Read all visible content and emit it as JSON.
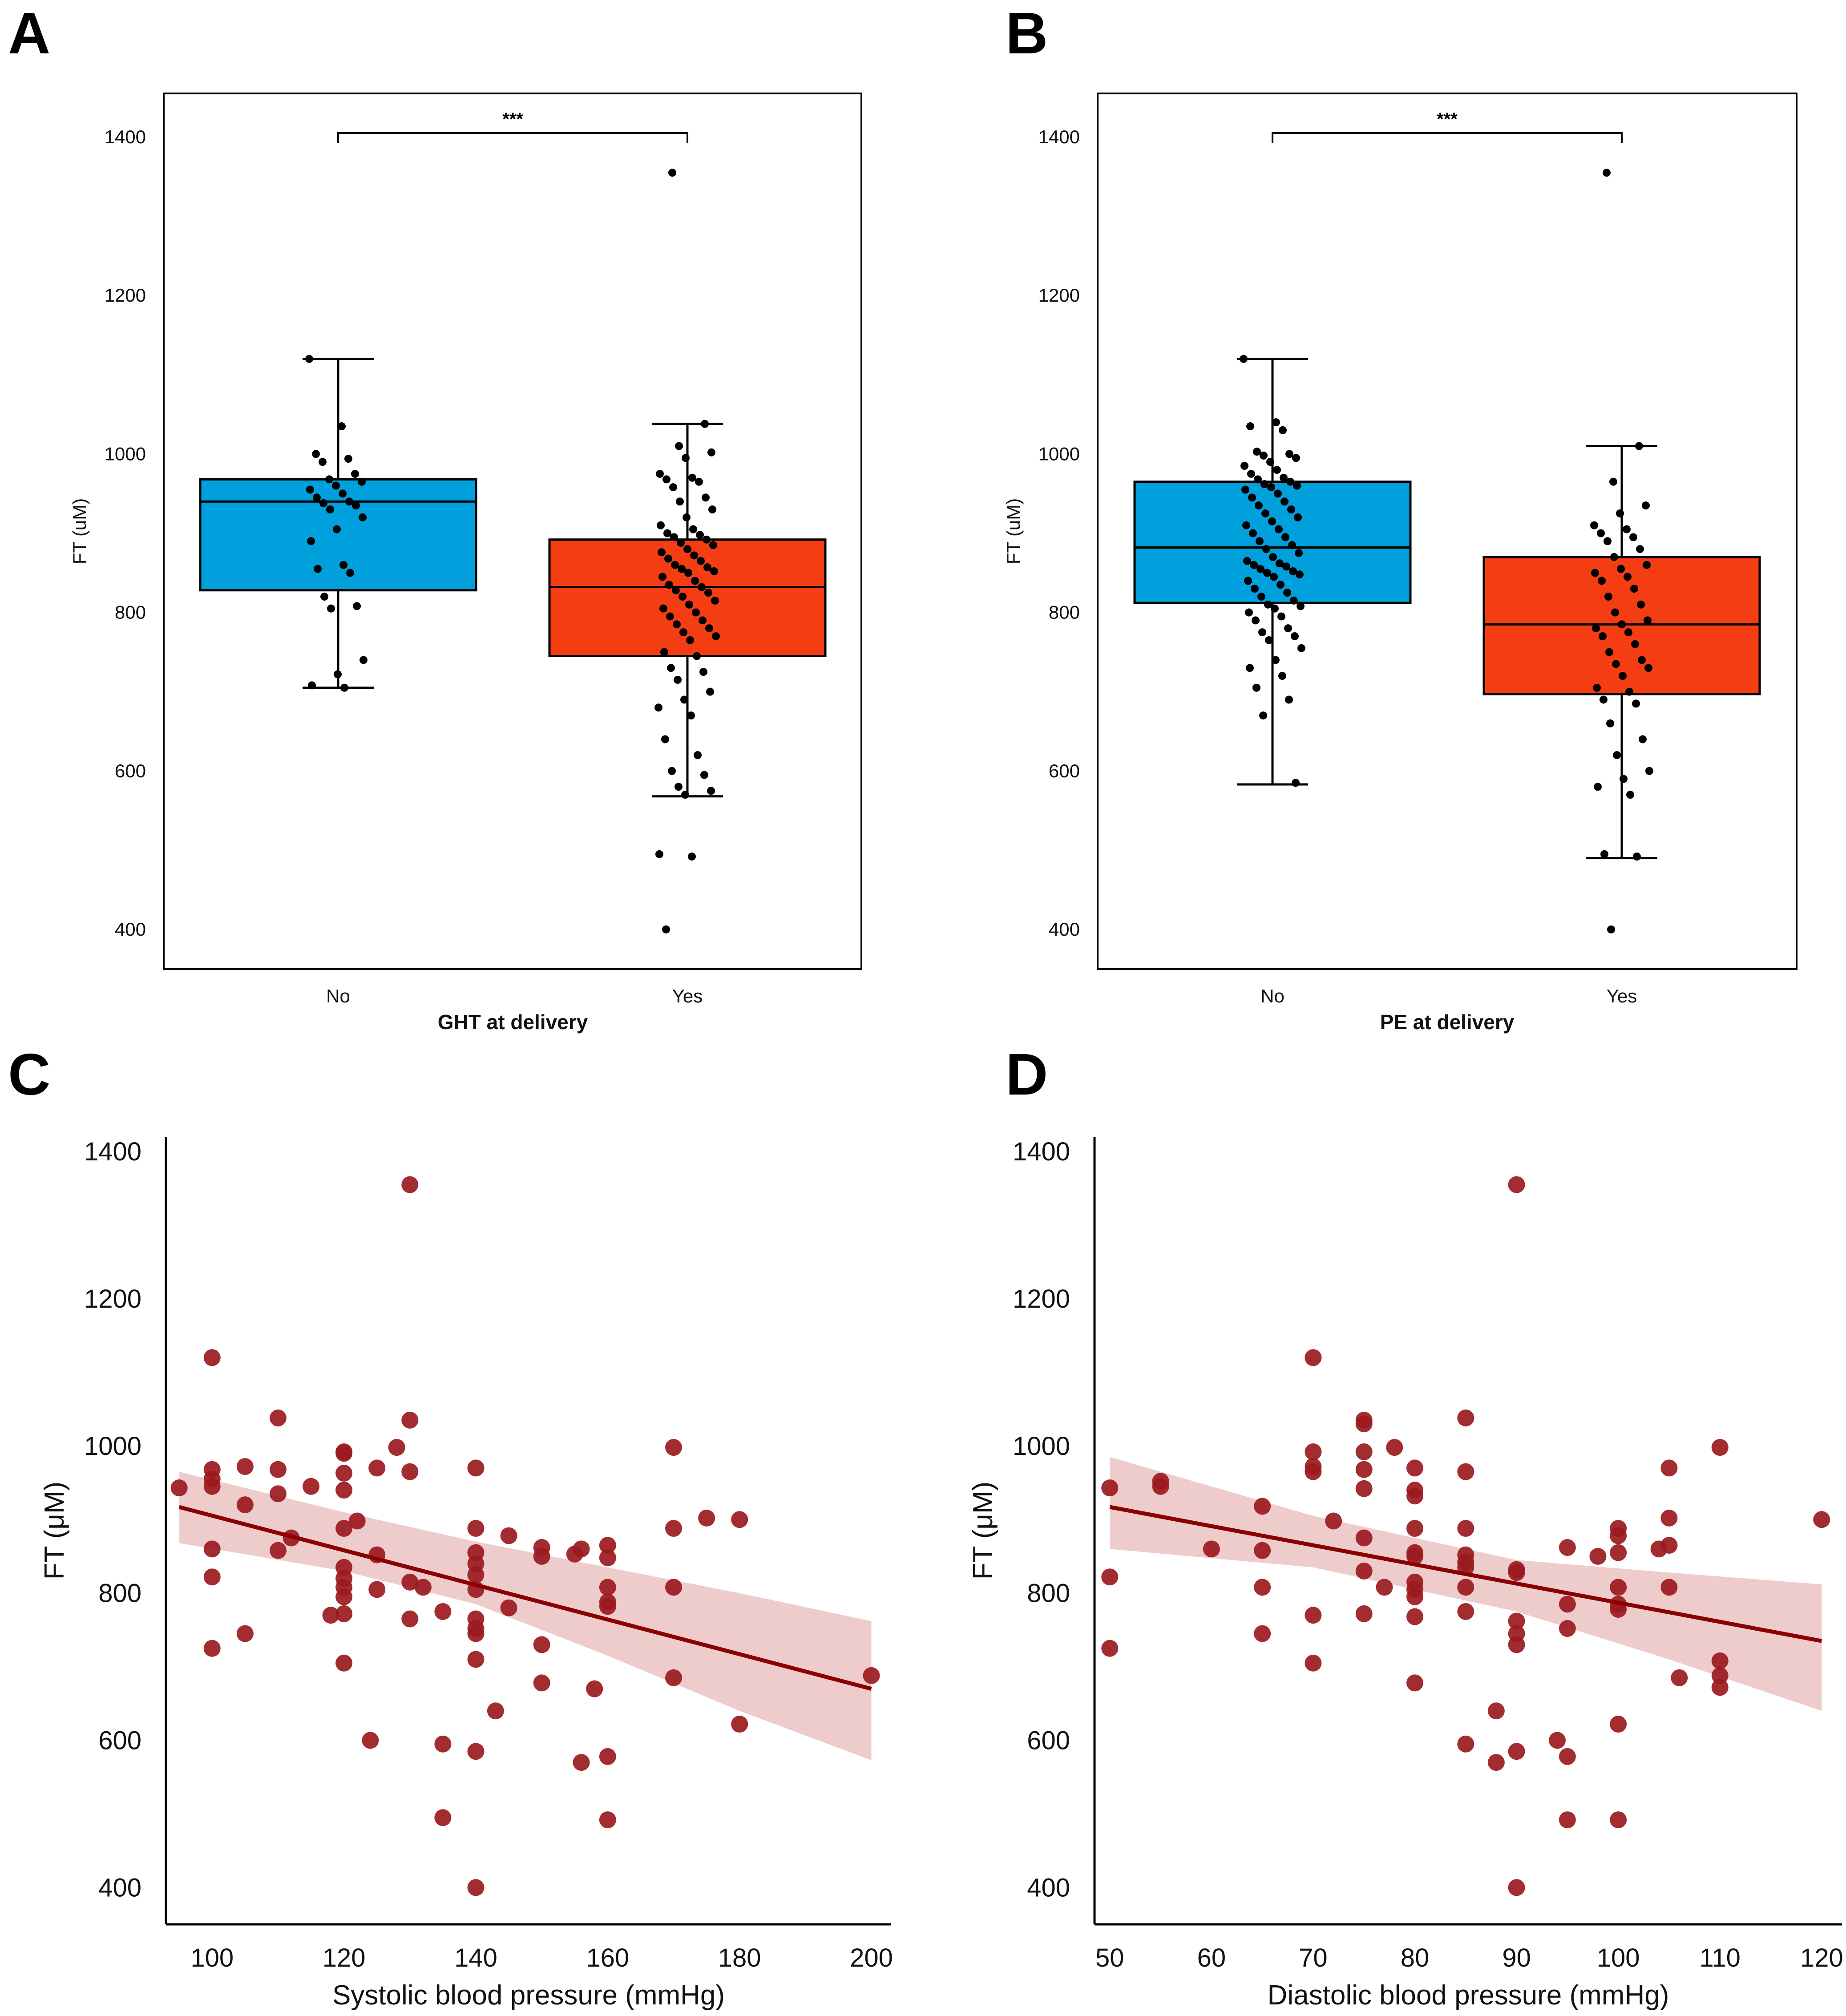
{
  "colors": {
    "no_box": "#00A0DC",
    "yes_box": "#F53D14",
    "scatter_point": "#9B1A1F",
    "regression_line": "#8B0000",
    "ci_band": "#E8B7B7"
  },
  "chart_data": [
    {
      "panel": "A",
      "type": "box",
      "xlabel": "GHT at delivery",
      "ylabel": "FT (uM)",
      "ylim": [
        350,
        1455
      ],
      "yticks": [
        400,
        600,
        800,
        1000,
        1200,
        1400
      ],
      "categories": [
        "No",
        "Yes"
      ],
      "significance": "***",
      "boxes": [
        {
          "name": "No",
          "q1": 828,
          "median": 940,
          "q3": 968,
          "whisker_low": 705,
          "whisker_high": 1120
        },
        {
          "name": "Yes",
          "q1": 745,
          "median": 832,
          "q3": 892,
          "whisker_low": 568,
          "whisker_high": 1038
        }
      ],
      "points": [
        [
          1120,
          1035,
          1000,
          994,
          990,
          975,
          968,
          965,
          960,
          955,
          950,
          945,
          940,
          938,
          935,
          930,
          920,
          905,
          890,
          860,
          855,
          850,
          820,
          808,
          805,
          740,
          722,
          708,
          705
        ],
        [
          1355,
          1038,
          1010,
          1002,
          995,
          975,
          970,
          968,
          965,
          958,
          945,
          940,
          930,
          920,
          910,
          905,
          900,
          898,
          895,
          892,
          888,
          885,
          880,
          876,
          872,
          868,
          865,
          860,
          857,
          855,
          852,
          850,
          845,
          840,
          835,
          832,
          828,
          825,
          820,
          815,
          810,
          805,
          800,
          795,
          790,
          785,
          780,
          775,
          770,
          765,
          750,
          745,
          730,
          725,
          715,
          700,
          690,
          680,
          670,
          640,
          620,
          600,
          595,
          580,
          575,
          570,
          495,
          492,
          400
        ]
      ]
    },
    {
      "panel": "B",
      "type": "box",
      "xlabel": "PE at delivery",
      "ylabel": "FT (uM)",
      "ylim": [
        350,
        1455
      ],
      "yticks": [
        400,
        600,
        800,
        1000,
        1200,
        1400
      ],
      "categories": [
        "No",
        "Yes"
      ],
      "significance": "***",
      "boxes": [
        {
          "name": "No",
          "q1": 812,
          "median": 882,
          "q3": 965,
          "whisker_low": 583,
          "whisker_high": 1120
        },
        {
          "name": "Yes",
          "q1": 697,
          "median": 785,
          "q3": 870,
          "whisker_low": 490,
          "whisker_high": 1010
        }
      ],
      "points": [
        [
          1120,
          1040,
          1035,
          1030,
          1003,
          1000,
          998,
          995,
          990,
          985,
          980,
          975,
          970,
          968,
          965,
          962,
          960,
          958,
          955,
          950,
          945,
          940,
          935,
          930,
          925,
          920,
          915,
          910,
          905,
          900,
          895,
          890,
          885,
          880,
          875,
          870,
          865,
          862,
          860,
          858,
          855,
          852,
          850,
          848,
          845,
          840,
          835,
          830,
          825,
          820,
          815,
          810,
          808,
          805,
          800,
          795,
          790,
          780,
          775,
          770,
          765,
          755,
          740,
          730,
          720,
          705,
          690,
          670,
          585
        ],
        [
          1355,
          1010,
          965,
          935,
          925,
          910,
          905,
          900,
          895,
          890,
          880,
          870,
          860,
          855,
          850,
          845,
          840,
          830,
          820,
          810,
          800,
          790,
          785,
          780,
          775,
          770,
          760,
          750,
          740,
          735,
          730,
          720,
          705,
          700,
          690,
          685,
          660,
          640,
          620,
          600,
          590,
          580,
          570,
          495,
          492,
          400
        ]
      ]
    },
    {
      "panel": "C",
      "type": "scatter",
      "xlabel": "Systolic blood pressure (mmHg)",
      "ylabel": "FT (μM)",
      "xlim": [
        93,
        203
      ],
      "ylim": [
        350,
        1420
      ],
      "xticks": [
        100,
        120,
        140,
        160,
        180,
        200
      ],
      "yticks": [
        400,
        600,
        800,
        1000,
        1200,
        1400
      ],
      "fit": {
        "x": [
          95,
          200
        ],
        "y": [
          917,
          670
        ]
      },
      "ci_band": {
        "x": [
          95,
          120,
          140,
          160,
          180,
          200
        ],
        "upper": [
          965,
          910,
          870,
          835,
          800,
          762
        ],
        "lower": [
          868,
          830,
          785,
          715,
          640,
          573
        ]
      },
      "points": [
        [
          95,
          943
        ],
        [
          100,
          1120
        ],
        [
          100,
          968
        ],
        [
          100,
          955
        ],
        [
          100,
          945
        ],
        [
          100,
          860
        ],
        [
          100,
          822
        ],
        [
          100,
          725
        ],
        [
          105,
          972
        ],
        [
          105,
          920
        ],
        [
          105,
          745
        ],
        [
          110,
          1038
        ],
        [
          110,
          968
        ],
        [
          110,
          935
        ],
        [
          110,
          858
        ],
        [
          112,
          875
        ],
        [
          115,
          945
        ],
        [
          118,
          770
        ],
        [
          120,
          992
        ],
        [
          120,
          990
        ],
        [
          120,
          963
        ],
        [
          120,
          940
        ],
        [
          120,
          888
        ],
        [
          120,
          835
        ],
        [
          120,
          820
        ],
        [
          120,
          808
        ],
        [
          120,
          795
        ],
        [
          120,
          772
        ],
        [
          120,
          705
        ],
        [
          122,
          898
        ],
        [
          124,
          600
        ],
        [
          125,
          970
        ],
        [
          125,
          852
        ],
        [
          125,
          805
        ],
        [
          128,
          998
        ],
        [
          130,
          1355
        ],
        [
          130,
          1035
        ],
        [
          130,
          965
        ],
        [
          130,
          815
        ],
        [
          130,
          765
        ],
        [
          132,
          808
        ],
        [
          135,
          775
        ],
        [
          135,
          595
        ],
        [
          135,
          495
        ],
        [
          140,
          970
        ],
        [
          140,
          888
        ],
        [
          140,
          855
        ],
        [
          140,
          840
        ],
        [
          140,
          825
        ],
        [
          140,
          805
        ],
        [
          140,
          765
        ],
        [
          140,
          752
        ],
        [
          140,
          745
        ],
        [
          140,
          710
        ],
        [
          140,
          585
        ],
        [
          140,
          400
        ],
        [
          143,
          640
        ],
        [
          145,
          878
        ],
        [
          145,
          780
        ],
        [
          150,
          862
        ],
        [
          150,
          850
        ],
        [
          150,
          730
        ],
        [
          150,
          678
        ],
        [
          155,
          853
        ],
        [
          156,
          860
        ],
        [
          156,
          570
        ],
        [
          158,
          670
        ],
        [
          160,
          865
        ],
        [
          160,
          848
        ],
        [
          160,
          808
        ],
        [
          160,
          788
        ],
        [
          160,
          782
        ],
        [
          160,
          578
        ],
        [
          160,
          492
        ],
        [
          170,
          998
        ],
        [
          170,
          888
        ],
        [
          170,
          808
        ],
        [
          170,
          685
        ],
        [
          175,
          902
        ],
        [
          180,
          900
        ],
        [
          180,
          622
        ],
        [
          200,
          688
        ]
      ]
    },
    {
      "panel": "D",
      "type": "scatter",
      "xlabel": "Diastolic blood pressure (mmHg)",
      "ylabel": "FT (μM)",
      "xlim": [
        48.5,
        122
      ],
      "ylim": [
        350,
        1420
      ],
      "xticks": [
        50,
        60,
        70,
        80,
        90,
        100,
        110,
        120
      ],
      "yticks": [
        400,
        600,
        800,
        1000,
        1200,
        1400
      ],
      "fit": {
        "x": [
          50,
          120
        ],
        "y": [
          917,
          735
        ]
      },
      "ci_band": {
        "x": [
          50,
          70,
          90,
          105,
          120
        ],
        "upper": [
          985,
          905,
          845,
          828,
          812
        ],
        "lower": [
          860,
          835,
          775,
          710,
          640
        ]
      },
      "points": [
        [
          50,
          943
        ],
        [
          50,
          822
        ],
        [
          50,
          725
        ],
        [
          55,
          952
        ],
        [
          55,
          945
        ],
        [
          60,
          860
        ],
        [
          65,
          918
        ],
        [
          65,
          858
        ],
        [
          65,
          808
        ],
        [
          65,
          745
        ],
        [
          70,
          1120
        ],
        [
          70,
          992
        ],
        [
          70,
          972
        ],
        [
          70,
          965
        ],
        [
          70,
          770
        ],
        [
          70,
          705
        ],
        [
          72,
          898
        ],
        [
          75,
          1035
        ],
        [
          75,
          1030
        ],
        [
          75,
          992
        ],
        [
          75,
          968
        ],
        [
          75,
          942
        ],
        [
          75,
          875
        ],
        [
          75,
          830
        ],
        [
          75,
          772
        ],
        [
          77,
          808
        ],
        [
          78,
          998
        ],
        [
          80,
          970
        ],
        [
          80,
          940
        ],
        [
          80,
          932
        ],
        [
          80,
          888
        ],
        [
          80,
          855
        ],
        [
          80,
          850
        ],
        [
          80,
          815
        ],
        [
          80,
          805
        ],
        [
          80,
          795
        ],
        [
          80,
          768
        ],
        [
          80,
          678
        ],
        [
          85,
          1038
        ],
        [
          85,
          965
        ],
        [
          85,
          888
        ],
        [
          85,
          852
        ],
        [
          85,
          842
        ],
        [
          85,
          835
        ],
        [
          85,
          808
        ],
        [
          85,
          775
        ],
        [
          85,
          595
        ],
        [
          88,
          640
        ],
        [
          88,
          570
        ],
        [
          90,
          1355
        ],
        [
          90,
          832
        ],
        [
          90,
          828
        ],
        [
          90,
          762
        ],
        [
          90,
          745
        ],
        [
          90,
          730
        ],
        [
          90,
          585
        ],
        [
          90,
          400
        ],
        [
          94,
          600
        ],
        [
          95,
          862
        ],
        [
          95,
          785
        ],
        [
          95,
          752
        ],
        [
          95,
          578
        ],
        [
          95,
          492
        ],
        [
          98,
          850
        ],
        [
          100,
          888
        ],
        [
          100,
          878
        ],
        [
          100,
          855
        ],
        [
          100,
          808
        ],
        [
          100,
          785
        ],
        [
          100,
          778
        ],
        [
          100,
          622
        ],
        [
          100,
          492
        ],
        [
          104,
          860
        ],
        [
          105,
          970
        ],
        [
          105,
          902
        ],
        [
          105,
          865
        ],
        [
          105,
          808
        ],
        [
          106,
          685
        ],
        [
          110,
          998
        ],
        [
          110,
          708
        ],
        [
          110,
          688
        ],
        [
          110,
          672
        ],
        [
          120,
          900
        ]
      ]
    }
  ]
}
